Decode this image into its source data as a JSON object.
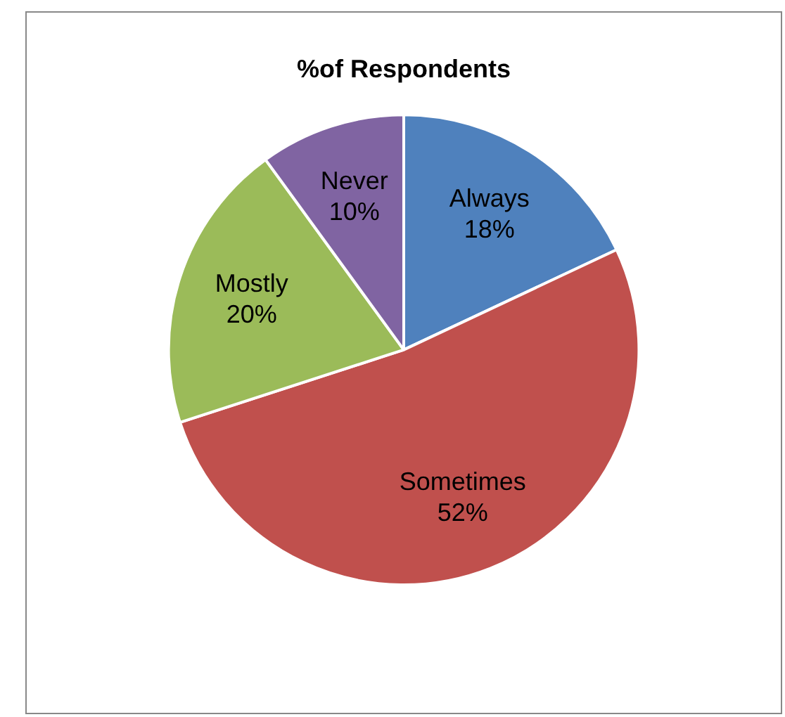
{
  "chart_data": {
    "type": "pie",
    "title": "%of Respondents",
    "categories": [
      "Always",
      "Sometimes",
      "Mostly",
      "Never"
    ],
    "values": [
      18,
      52,
      20,
      10
    ],
    "value_labels": [
      "18%",
      "52%",
      "20%",
      "10%"
    ],
    "colors": [
      "#4f81bd",
      "#c0504d",
      "#9bbb59",
      "#8064a2"
    ],
    "legend": false
  }
}
